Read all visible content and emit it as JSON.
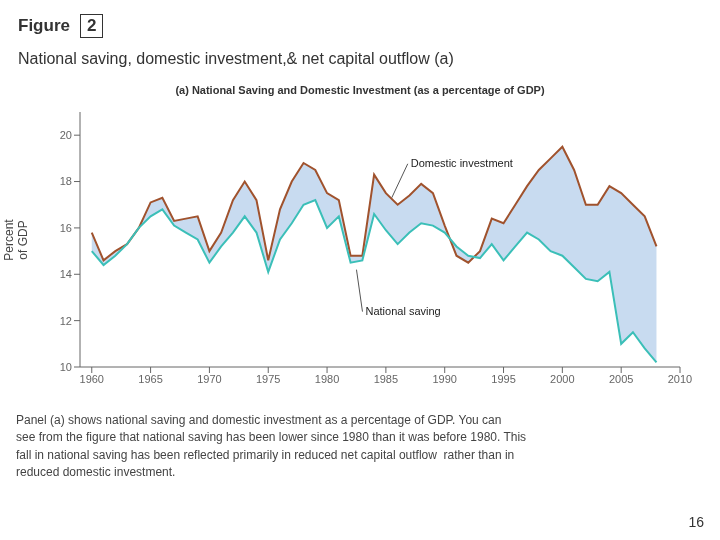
{
  "chart_data": {
    "type": "line",
    "figure_label": "Figure",
    "figure_number": "2",
    "title": "National saving, domestic investment,& net capital outflow (a)",
    "subtitle": "(a) National Saving and Domestic Investment (as a percentage of GDP)",
    "y_label": "Percent\nof GDP",
    "x": [
      1960,
      1961,
      1962,
      1963,
      1964,
      1965,
      1966,
      1967,
      1968,
      1969,
      1970,
      1971,
      1972,
      1973,
      1974,
      1975,
      1976,
      1977,
      1978,
      1979,
      1980,
      1981,
      1982,
      1983,
      1984,
      1985,
      1986,
      1987,
      1988,
      1989,
      1990,
      1991,
      1992,
      1993,
      1994,
      1995,
      1996,
      1997,
      1998,
      1999,
      2000,
      2001,
      2002,
      2003,
      2004,
      2005,
      2006,
      2007,
      2008
    ],
    "series": [
      {
        "color": "#a0522d",
        "values": [
          15.8,
          14.6,
          15.0,
          15.3,
          16.0,
          17.1,
          17.3,
          16.3,
          16.4,
          16.5,
          15.0,
          15.8,
          17.2,
          18.0,
          17.2,
          14.6,
          16.8,
          18.0,
          18.8,
          18.5,
          17.5,
          17.2,
          14.8,
          14.8,
          18.3,
          17.5,
          17.0,
          17.4,
          17.9,
          17.5,
          16.1,
          14.8,
          14.5,
          15.0,
          16.4,
          16.2,
          17.0,
          17.8,
          18.5,
          19.0,
          19.5,
          18.5,
          17.0,
          17.0,
          17.8,
          17.5,
          17.0,
          16.5,
          15.2
        ]
      },
      {
        "color": "#3bbfb8",
        "values": [
          15.0,
          14.4,
          14.8,
          15.3,
          16.0,
          16.5,
          16.8,
          16.1,
          15.8,
          15.5,
          14.5,
          15.2,
          15.8,
          16.5,
          15.8,
          14.1,
          15.5,
          16.2,
          17.0,
          17.2,
          16.0,
          16.5,
          14.5,
          14.6,
          16.6,
          15.9,
          15.3,
          15.8,
          16.2,
          16.1,
          15.8,
          15.2,
          14.8,
          14.7,
          15.3,
          14.6,
          15.2,
          15.8,
          15.5,
          15.0,
          14.8,
          14.3,
          13.8,
          13.7,
          14.1,
          11.0,
          11.5,
          10.8,
          10.2
        ]
      }
    ],
    "color": "#aac8e8",
    "xlim": [
      1959,
      2010
    ],
    "xticks": [
      1960,
      1965,
      1970,
      1975,
      1980,
      1985,
      1990,
      1995,
      2000,
      2005,
      2010
    ],
    "ylim": [
      10,
      21
    ],
    "yticks": [
      10,
      12,
      14,
      16,
      18,
      20
    ],
    "grid": false,
    "annotations": [
      {
        "text": "Domestic investment",
        "x": 1985.5,
        "y": 17.3
      },
      {
        "text": "National saving",
        "x": 1982.5,
        "y": 14.2
      }
    ],
    "caption": "Panel (a) shows national saving and domestic investment as a percentage of GDP. You can\nsee from the figure that national saving has been lower since 1980 than it was before 1980. This\nfall in national saving has been reflected primarily in reduced net capital outflow  rather than in\nreduced domestic investment.",
    "page_number": "16"
  }
}
